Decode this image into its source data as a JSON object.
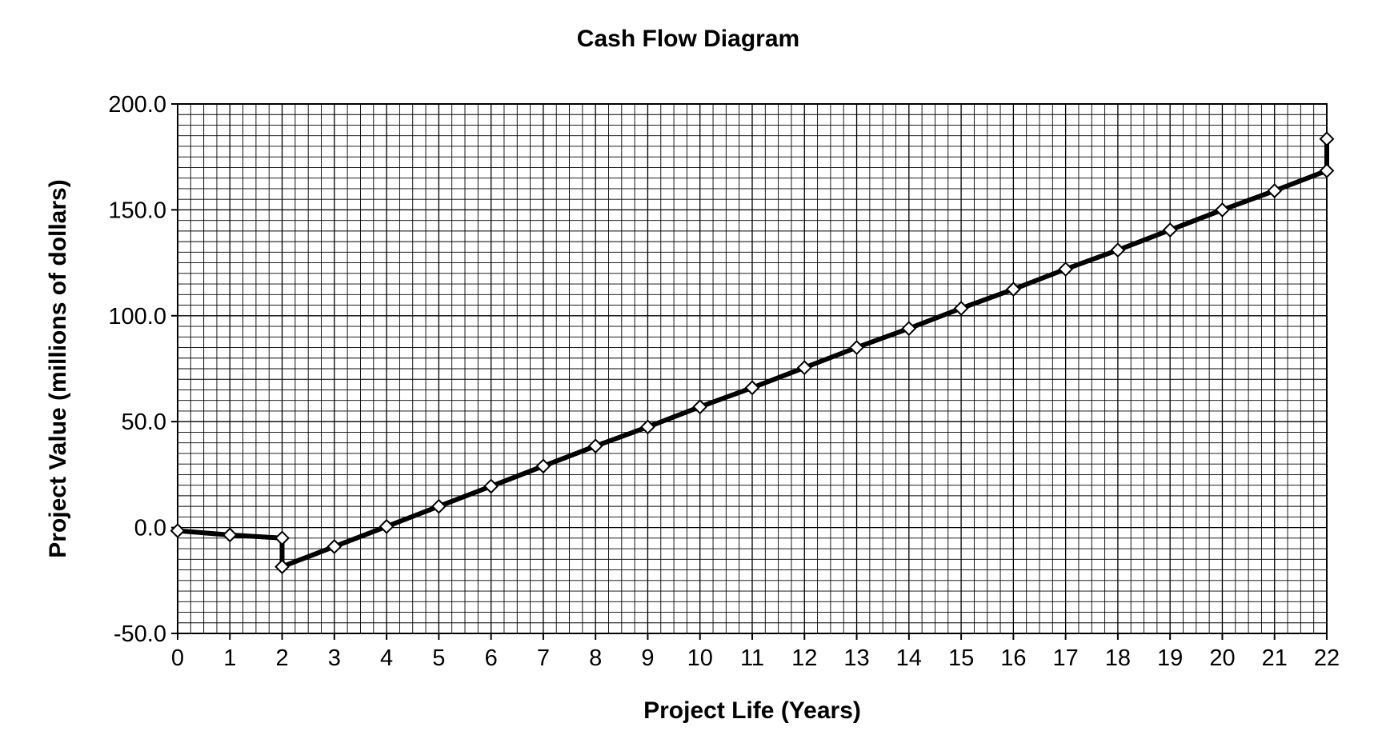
{
  "chart_data": {
    "type": "line",
    "title": "Cash Flow Diagram",
    "xlabel": "Project Life (Years)",
    "ylabel": "Project Value (millions of dollars)",
    "xlim": [
      0,
      22
    ],
    "ylim": [
      -50,
      200
    ],
    "x_ticks": [
      0,
      1,
      2,
      3,
      4,
      5,
      6,
      7,
      8,
      9,
      10,
      11,
      12,
      13,
      14,
      15,
      16,
      17,
      18,
      19,
      20,
      21,
      22
    ],
    "y_ticks": [
      -50,
      0,
      50,
      100,
      150,
      200
    ],
    "y_tick_labels": [
      "-50.0",
      "0.0",
      "50.0",
      "100.0",
      "150.0",
      "200.0"
    ],
    "x_minor_step": 0.25,
    "y_minor_step": 5,
    "grid": true,
    "legend": "none",
    "line_color": "#000000",
    "marker_fill": "#ffffff",
    "series": [
      {
        "x": [
          0,
          1,
          2,
          2,
          3,
          4,
          5,
          6,
          7,
          8,
          9,
          10,
          11,
          12,
          13,
          14,
          15,
          16,
          17,
          18,
          19,
          20,
          21,
          22,
          22
        ],
        "values": [
          -1.5,
          -3.5,
          -5,
          -18.5,
          -9,
          0.5,
          10,
          19.5,
          29,
          38.5,
          47.5,
          57,
          66,
          75.5,
          85,
          94,
          103.5,
          112.5,
          122,
          131,
          140.5,
          150,
          159,
          168.5,
          183.5
        ]
      }
    ]
  }
}
